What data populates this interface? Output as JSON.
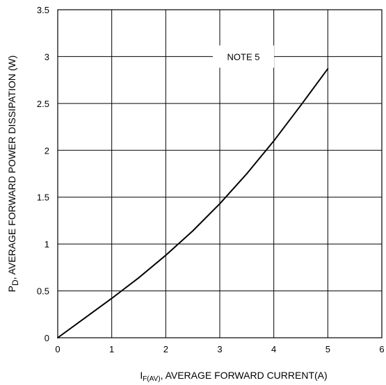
{
  "chart_data": {
    "type": "line",
    "xlabel": {
      "symbol": "I",
      "subscript": "F(AV)",
      "text": ", AVERAGE FORWARD CURRENT(A)"
    },
    "ylabel": {
      "symbol": "P",
      "subscript": "D",
      "text": ", AVERAGE FORWARD POWER DISSIPATION (W)"
    },
    "xlim": [
      0,
      6
    ],
    "ylim": [
      0,
      3.5
    ],
    "x_ticks": [
      "0",
      "1",
      "2",
      "3",
      "4",
      "5",
      "6"
    ],
    "y_ticks": [
      "0",
      "0.5",
      "1",
      "1.5",
      "2",
      "2.5",
      "3",
      "3.5"
    ],
    "grid": true,
    "annotation": "NOTE 5",
    "series": [
      {
        "x": [
          0,
          0.5,
          1,
          1.5,
          2,
          2.5,
          3,
          3.5,
          4,
          4.5,
          5
        ],
        "y": [
          0,
          0.21,
          0.42,
          0.64,
          0.88,
          1.14,
          1.43,
          1.75,
          2.1,
          2.48,
          2.87
        ]
      }
    ]
  }
}
